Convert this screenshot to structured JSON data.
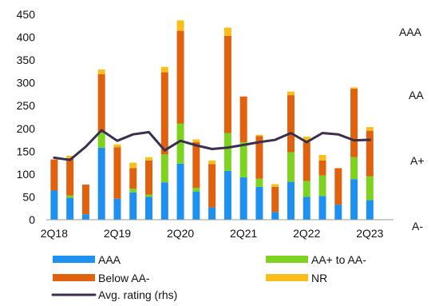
{
  "chart_data": {
    "type": "bar",
    "stacked": true,
    "categories": [
      "2Q18",
      "3Q18",
      "4Q18",
      "1Q19",
      "2Q19",
      "3Q19",
      "4Q19",
      "1Q20",
      "2Q20",
      "3Q20",
      "4Q20",
      "1Q21",
      "2Q21",
      "3Q21",
      "4Q21",
      "1Q22",
      "2Q22",
      "3Q22",
      "4Q22",
      "1Q23",
      "2Q23",
      "3Q23"
    ],
    "x_tick_labels": [
      "2Q18",
      "",
      "",
      "",
      "2Q19",
      "",
      "",
      "",
      "2Q20",
      "",
      "",
      "",
      "2Q21",
      "",
      "",
      "",
      "2Q22",
      "",
      "",
      "",
      "2Q23",
      ""
    ],
    "y_left": {
      "ylim": [
        0,
        450
      ],
      "ticks": [
        0,
        50,
        100,
        150,
        200,
        250,
        300,
        350,
        400,
        450
      ]
    },
    "y_right": {
      "tick_labels": [
        "A-",
        "A+",
        "AA",
        "AAA"
      ]
    },
    "series": [
      {
        "name": "AAA",
        "color": "#1E90F0",
        "values": [
          64,
          48,
          12,
          158,
          46,
          60,
          50,
          82,
          123,
          62,
          27,
          107,
          93,
          72,
          17,
          83,
          50,
          52,
          33,
          89,
          43,
          0
        ]
      },
      {
        "name": "AA+ to AA-",
        "color": "#7ED321",
        "values": [
          0,
          5,
          0,
          33,
          0,
          8,
          5,
          61,
          88,
          8,
          0,
          83,
          77,
          18,
          0,
          65,
          35,
          45,
          0,
          48,
          52,
          0
        ]
      },
      {
        "name": "Below AA-",
        "color": "#E0620E",
        "values": [
          68,
          82,
          65,
          128,
          113,
          45,
          75,
          180,
          203,
          100,
          95,
          213,
          100,
          93,
          55,
          125,
          85,
          33,
          80,
          150,
          100,
          0
        ]
      },
      {
        "name": "NR",
        "color": "#F9BE1C",
        "values": [
          0,
          5,
          0,
          10,
          6,
          12,
          7,
          12,
          23,
          6,
          8,
          18,
          0,
          3,
          6,
          8,
          12,
          12,
          0,
          3,
          8,
          0
        ]
      }
    ],
    "line_series": {
      "name": "Avg. rating (rhs)",
      "color": "#3B2F4E",
      "values": [
        136,
        131,
        160,
        196,
        173,
        187,
        192,
        152,
        173,
        163,
        155,
        158,
        164,
        170,
        175,
        190,
        170,
        190,
        187,
        174,
        175,
        null
      ],
      "note": "plotted on the left-axis scale"
    },
    "grid": false,
    "legend": "bottom"
  }
}
